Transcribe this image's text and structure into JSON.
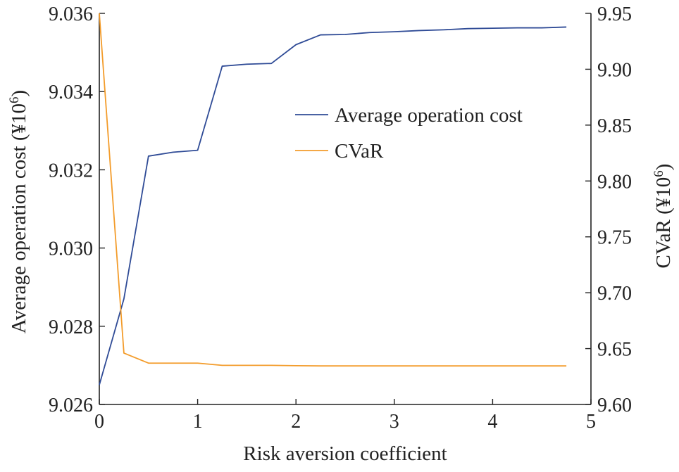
{
  "chart_data": {
    "type": "line",
    "title": "",
    "xlabel": "Risk aversion coefficient",
    "ylabel_left": "Average operation cost (¥10",
    "ylabel_left_sup": "6",
    "ylabel_left_end": ")",
    "ylabel_right": "CVaR (¥10",
    "ylabel_right_sup": "6",
    "ylabel_right_end": ")",
    "xlim": [
      0,
      5
    ],
    "ylim_left": [
      9.026,
      9.036
    ],
    "ylim_right": [
      9.6,
      9.95
    ],
    "x_ticks": [
      "0",
      "1",
      "2",
      "3",
      "4",
      "5"
    ],
    "y_left_ticks": [
      "9.026",
      "9.028",
      "9.030",
      "9.032",
      "9.034",
      "9.036"
    ],
    "y_right_ticks": [
      "9.60",
      "9.65",
      "9.70",
      "9.75",
      "9.80",
      "9.85",
      "9.90",
      "9.95"
    ],
    "grid": false,
    "legend_position": "upper-right",
    "x": [
      0,
      0.25,
      0.5,
      0.75,
      1.0,
      1.25,
      1.5,
      1.75,
      2.0,
      2.25,
      2.5,
      2.75,
      3.0,
      3.25,
      3.5,
      3.75,
      4.0,
      4.25,
      4.5,
      4.75
    ],
    "series": [
      {
        "name": "Average operation cost",
        "axis": "left",
        "color": "#2f4b96",
        "values": [
          9.0265,
          9.0287,
          9.03235,
          9.03245,
          9.0325,
          9.03465,
          9.0347,
          9.03472,
          9.0352,
          9.03545,
          9.03546,
          9.03551,
          9.03553,
          9.03556,
          9.03558,
          9.03561,
          9.03562,
          9.03563,
          9.03563,
          9.03565
        ]
      },
      {
        "name": "CVaR",
        "axis": "right",
        "color": "#f39c2b",
        "values": [
          9.95,
          9.646,
          9.637,
          9.637,
          9.637,
          9.635,
          9.635,
          9.635,
          9.6347,
          9.6345,
          9.6345,
          9.6345,
          9.6345,
          9.6345,
          9.6345,
          9.6345,
          9.6345,
          9.6345,
          9.6345,
          9.6345
        ]
      }
    ]
  }
}
